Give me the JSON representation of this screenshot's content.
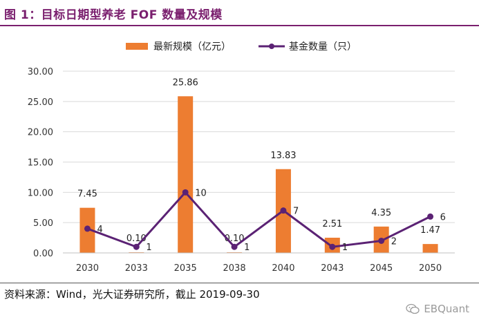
{
  "header": {
    "title": "图 1：目标日期型养老 FOF 数量及规模"
  },
  "footer": {
    "source": "资料来源：Wind，光大证券研究所，截止 2019-09-30",
    "watermark": "EBQuant"
  },
  "colors": {
    "bar": "#ed7d31",
    "line": "#5b2274",
    "title": "#7a1f6e"
  },
  "chart_data": {
    "type": "bar",
    "title": "",
    "categories": [
      "2030",
      "2033",
      "2035",
      "2038",
      "2040",
      "2043",
      "2045",
      "2050"
    ],
    "series": [
      {
        "name": "最新规模（亿元）",
        "type": "bar",
        "axis": "left",
        "values": [
          7.45,
          0.1,
          25.86,
          0.1,
          13.83,
          2.51,
          4.35,
          1.47
        ],
        "labels": [
          "7.45",
          "0.10",
          "25.86",
          "0.10",
          "13.83",
          "2.51",
          "4.35",
          "1.47"
        ]
      },
      {
        "name": "基金数量（只）",
        "type": "line",
        "axis": "right",
        "values": [
          4,
          1,
          10,
          1,
          7,
          1,
          2,
          6
        ],
        "labels": [
          "4",
          "1",
          "10",
          "1",
          "7",
          "1",
          "2",
          "6"
        ]
      }
    ],
    "y_ticks": [
      "0.00",
      "5.00",
      "10.00",
      "15.00",
      "20.00",
      "25.00",
      "30.00"
    ],
    "ylim": [
      0,
      30
    ],
    "y2lim": [
      0,
      30
    ],
    "grid": true,
    "legend": "top-center"
  }
}
